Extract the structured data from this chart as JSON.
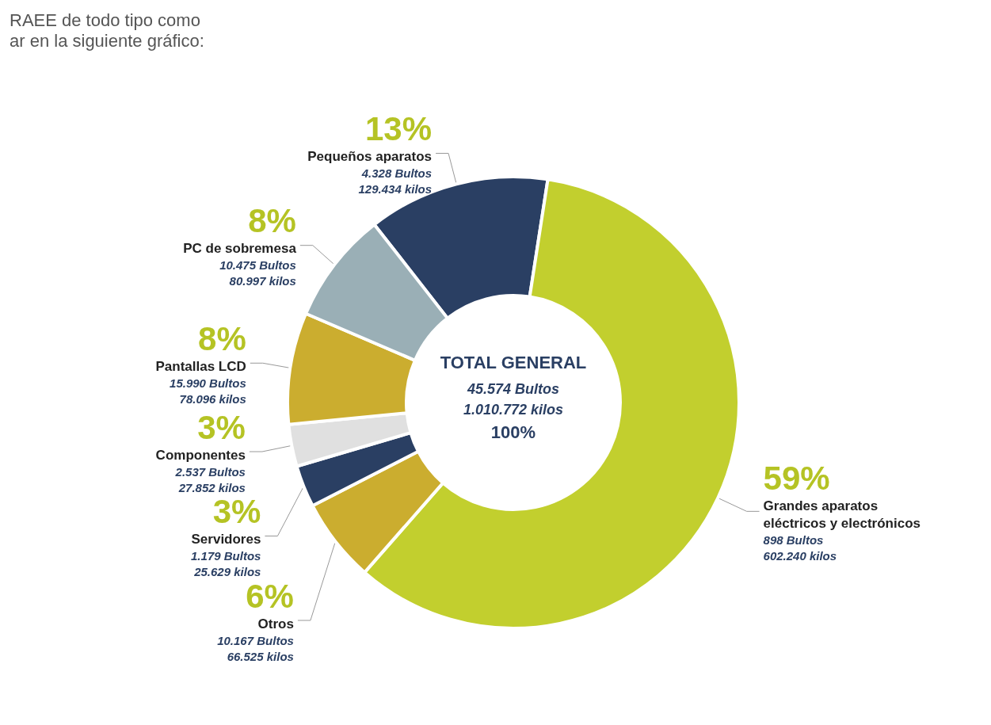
{
  "chart_data": {
    "type": "donut",
    "title": "TOTAL GENERAL",
    "subtitle": "45.574 Bultos\n1.010.772 kilos",
    "categories": [
      "Pequeños aparatos",
      "Grandes aparatos\neléctricos y electrónicos",
      "Otros",
      "Servidores",
      "Componentes",
      "Pantallas LCD",
      "PC de sobremesa"
    ],
    "values": [
      13,
      59,
      6,
      3,
      3,
      8,
      8
    ],
    "colors": [
      "#2a3f63",
      "#c2cf2e",
      "#cbad2f",
      "#2a3f63",
      "#e0e0e0",
      "#cbad2f",
      "#9aafb6"
    ],
    "value_labels": [
      "13%",
      "59%",
      "6%",
      "3%",
      "3%",
      "8%",
      "8%"
    ],
    "annotations": [
      "100%",
      "RAEE de todo tipo como\nar en la siguiente gráfico:",
      {
        "text": "4.328 Bultos\n129.434 kilos",
        "x": "Pequeños aparatos"
      },
      {
        "text": "898 Bultos\n602.240 kilos",
        "x": "Grandes aparatos\neléctricos y electrónicos"
      },
      {
        "text": "10.167 Bultos\n66.525 kilos",
        "x": "Otros"
      },
      {
        "text": "1.179 Bultos\n25.629 kilos",
        "x": "Servidores"
      },
      {
        "text": "2.537 Bultos\n27.852 kilos",
        "x": "Componentes"
      },
      {
        "text": "15.990 Bultos\n78.096 kilos",
        "x": "Pantallas LCD"
      },
      {
        "text": "10.475 Bultos\n80.997 kilos",
        "x": "PC de sobremesa"
      }
    ]
  }
}
